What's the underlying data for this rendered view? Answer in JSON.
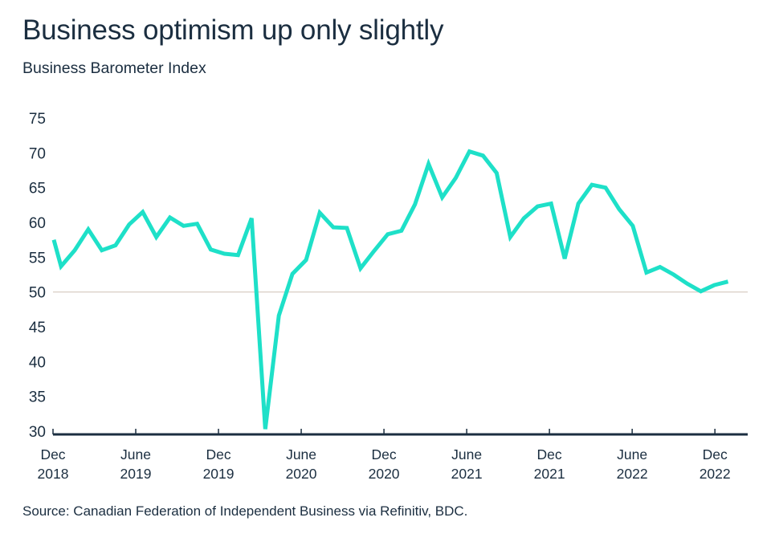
{
  "header": {
    "title": "Business optimism up only slightly",
    "subtitle": "Business Barometer Index"
  },
  "footer": {
    "source": "Source: Canadian Federation of Independent Business via Refinitiv, BDC."
  },
  "colors": {
    "line": "#1ee0c8",
    "text": "#1b2e40",
    "axis": "#1b2e40",
    "reference_line": "#ddd3cc"
  },
  "chart_data": {
    "type": "line",
    "title": "Business optimism up only slightly",
    "subtitle": "Business Barometer Index",
    "xlabel": "",
    "ylabel": "",
    "ylim": [
      30,
      75
    ],
    "yticks": [
      30,
      35,
      40,
      45,
      50,
      55,
      60,
      65,
      70,
      75
    ],
    "reference_line": 50,
    "grid": false,
    "legend": "none",
    "xticks": [
      {
        "line1": "Dec",
        "line2": "2018"
      },
      {
        "line1": "June",
        "line2": "2019"
      },
      {
        "line1": "Dec",
        "line2": "2019"
      },
      {
        "line1": "June",
        "line2": "2020"
      },
      {
        "line1": "Dec",
        "line2": "2020"
      },
      {
        "line1": "June",
        "line2": "2021"
      },
      {
        "line1": "Dec",
        "line2": "2021"
      },
      {
        "line1": "June",
        "line2": "2022"
      },
      {
        "line1": "Dec",
        "line2": "2022"
      }
    ],
    "x": [
      "2018-12",
      "2019-01",
      "2019-02",
      "2019-03",
      "2019-04",
      "2019-05",
      "2019-06",
      "2019-07",
      "2019-08",
      "2019-09",
      "2019-10",
      "2019-11",
      "2019-12",
      "2020-01",
      "2020-02",
      "2020-03",
      "2020-04",
      "2020-05",
      "2020-06",
      "2020-07",
      "2020-08",
      "2020-09",
      "2020-10",
      "2020-11",
      "2020-12",
      "2021-01",
      "2021-02",
      "2021-03",
      "2021-04",
      "2021-05",
      "2021-06",
      "2021-07",
      "2021-08",
      "2021-09",
      "2021-10",
      "2021-11",
      "2021-12",
      "2022-01",
      "2022-02",
      "2022-03",
      "2022-04",
      "2022-05",
      "2022-06",
      "2022-07",
      "2022-08",
      "2022-09",
      "2022-10",
      "2022-11",
      "2022-12",
      "2023-01",
      "2023-02"
    ],
    "series": [
      {
        "name": "Business Barometer Index",
        "values": [
          57.5,
          53.7,
          56.0,
          59.0,
          56.0,
          56.7,
          59.7,
          61.5,
          57.9,
          60.7,
          59.5,
          59.8,
          56.1,
          55.5,
          55.3,
          60.6,
          30.3,
          46.6,
          52.6,
          54.6,
          61.4,
          59.3,
          59.2,
          53.4,
          55.9,
          58.3,
          58.8,
          62.6,
          68.4,
          63.6,
          66.4,
          70.2,
          69.6,
          67.1,
          57.9,
          60.6,
          62.3,
          62.7,
          54.8,
          62.7,
          65.4,
          65.0,
          61.9,
          59.5,
          52.8,
          53.6,
          52.5,
          51.2,
          50.1,
          51.0,
          51.5
        ]
      }
    ]
  }
}
